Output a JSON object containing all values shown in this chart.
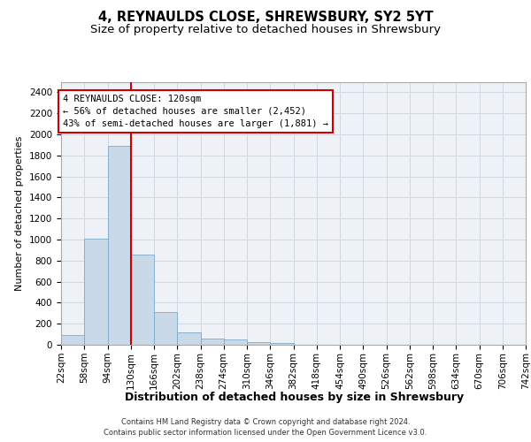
{
  "title1": "4, REYNAULDS CLOSE, SHREWSBURY, SY2 5YT",
  "title2": "Size of property relative to detached houses in Shrewsbury",
  "xlabel": "Distribution of detached houses by size in Shrewsbury",
  "ylabel": "Number of detached properties",
  "bar_values": [
    95,
    1010,
    1890,
    860,
    315,
    115,
    57,
    48,
    25,
    20,
    0,
    0,
    0,
    0,
    0,
    0,
    0,
    0,
    0,
    0
  ],
  "categories": [
    "22sqm",
    "58sqm",
    "94sqm",
    "130sqm",
    "166sqm",
    "202sqm",
    "238sqm",
    "274sqm",
    "310sqm",
    "346sqm",
    "382sqm",
    "418sqm",
    "454sqm",
    "490sqm",
    "526sqm",
    "562sqm",
    "598sqm",
    "634sqm",
    "670sqm",
    "706sqm",
    "742sqm"
  ],
  "bar_color": "#c9d9e8",
  "bar_edgecolor": "#7aaac8",
  "vline_x_bar_index": 3,
  "vline_color": "#cc0000",
  "annotation_line1": "4 REYNAULDS CLOSE: 120sqm",
  "annotation_line2": "← 56% of detached houses are smaller (2,452)",
  "annotation_line3": "43% of semi-detached houses are larger (1,881) →",
  "annotation_box_color": "#cc0000",
  "ylim": [
    0,
    2500
  ],
  "yticks": [
    0,
    200,
    400,
    600,
    800,
    1000,
    1200,
    1400,
    1600,
    1800,
    2000,
    2200,
    2400
  ],
  "grid_color": "#d0d8e4",
  "footer1": "Contains HM Land Registry data © Crown copyright and database right 2024.",
  "footer2": "Contains public sector information licensed under the Open Government Licence v3.0.",
  "background_color": "#eef2f7",
  "title1_fontsize": 10.5,
  "title2_fontsize": 9.5,
  "xlabel_fontsize": 9,
  "ylabel_fontsize": 8,
  "annotation_fontsize": 7.5,
  "tick_fontsize": 7.5,
  "footer_fontsize": 6
}
